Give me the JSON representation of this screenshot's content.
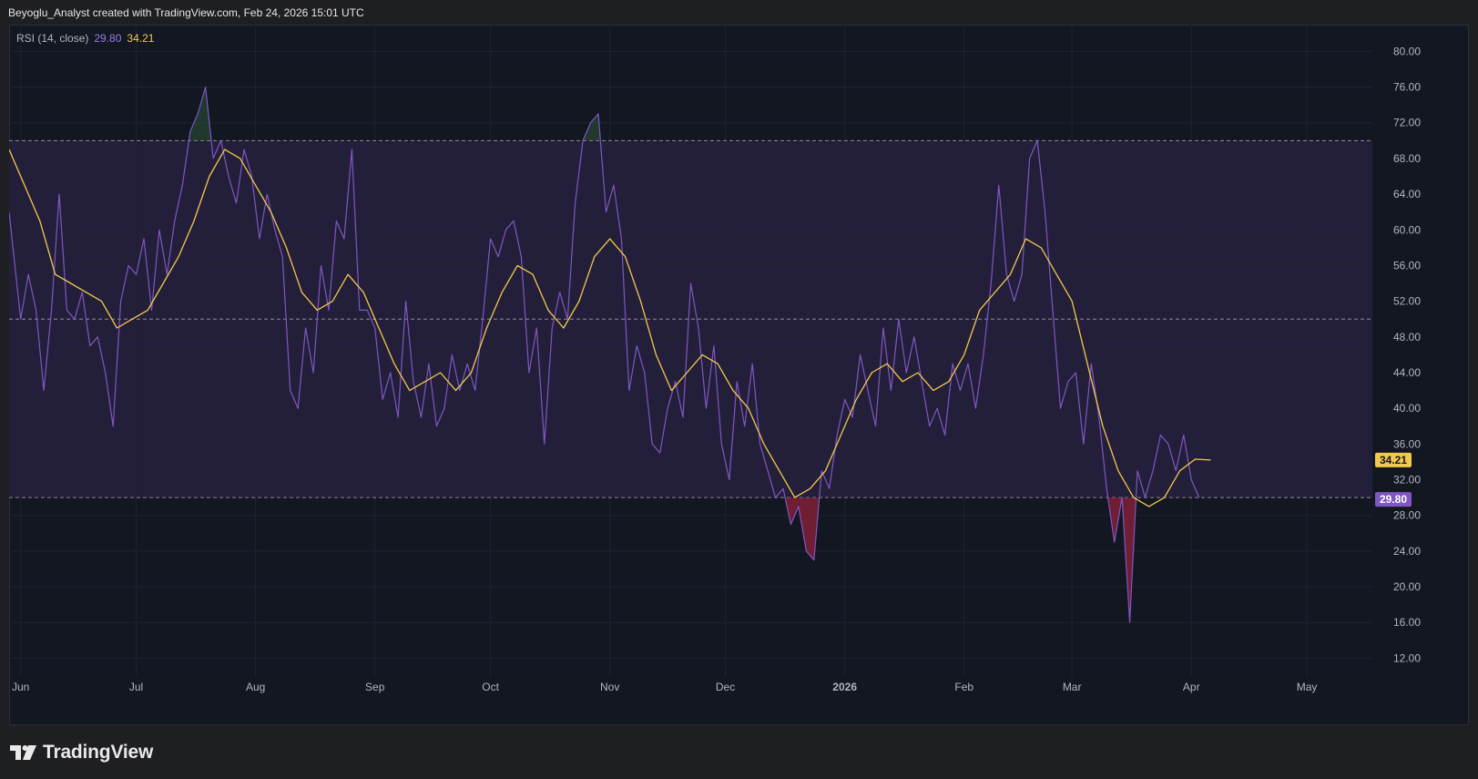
{
  "header": {
    "attribution": "Beyoglu_Analyst created with TradingView.com, Feb 24, 2026 15:01 UTC"
  },
  "legend": {
    "indicator": "RSI (14, close)",
    "rsi_value": "29.80",
    "ma_value": "34.21"
  },
  "footer": {
    "brand": "TradingView"
  },
  "colors": {
    "background": "#131722",
    "rsi_line": "#7e57c2",
    "ma_line": "#f2c94c",
    "band_fill": "#231f3a",
    "grid": "#1f2330",
    "oversold_fill": "#7a1f35"
  },
  "chart_data": {
    "type": "line",
    "indicator": "RSI (14, close)",
    "y_axis": {
      "ticks": [
        80,
        76,
        72,
        68,
        64,
        60,
        56,
        52,
        48,
        44,
        40,
        36,
        32,
        28,
        24,
        20,
        16,
        12
      ],
      "tick_labels": [
        "80.00",
        "76.00",
        "72.00",
        "68.00",
        "64.00",
        "60.00",
        "56.00",
        "52.00",
        "48.00",
        "44.00",
        "40.00",
        "36.00",
        "32.00",
        "28.00",
        "24.00",
        "20.00",
        "16.00",
        "12.00"
      ],
      "range": [
        10,
        83
      ]
    },
    "x_axis": {
      "tick_labels": [
        "Jun",
        "Jul",
        "Aug",
        "Sep",
        "Oct",
        "Nov",
        "Dec",
        "2026",
        "Feb",
        "Mar",
        "Apr",
        "May"
      ],
      "tick_dates": [
        "2025-06-01",
        "2025-07-01",
        "2025-08-01",
        "2025-09-01",
        "2025-10-01",
        "2025-11-01",
        "2025-12-01",
        "2026-01-01",
        "2026-02-01",
        "2026-03-01",
        "2026-04-01",
        "2026-05-01"
      ],
      "range": [
        "2025-05-29",
        "2026-05-18"
      ]
    },
    "bands": {
      "upper": 70,
      "middle": 50,
      "lower": 30
    },
    "last_values": {
      "rsi": "29.80",
      "ma": "34.21"
    },
    "series": [
      {
        "key": "rsi",
        "points": [
          [
            "2025-05-29",
            62
          ],
          [
            "2025-06-01",
            50
          ],
          [
            "2025-06-03",
            55
          ],
          [
            "2025-06-05",
            51
          ],
          [
            "2025-06-07",
            42
          ],
          [
            "2025-06-09",
            51
          ],
          [
            "2025-06-11",
            64
          ],
          [
            "2025-06-13",
            51
          ],
          [
            "2025-06-15",
            50
          ],
          [
            "2025-06-17",
            53
          ],
          [
            "2025-06-19",
            47
          ],
          [
            "2025-06-21",
            48
          ],
          [
            "2025-06-23",
            44
          ],
          [
            "2025-06-25",
            38
          ],
          [
            "2025-06-27",
            52
          ],
          [
            "2025-06-29",
            56
          ],
          [
            "2025-07-01",
            55
          ],
          [
            "2025-07-03",
            59
          ],
          [
            "2025-07-05",
            51
          ],
          [
            "2025-07-07",
            60
          ],
          [
            "2025-07-09",
            55
          ],
          [
            "2025-07-11",
            61
          ],
          [
            "2025-07-13",
            65
          ],
          [
            "2025-07-15",
            71
          ],
          [
            "2025-07-17",
            73
          ],
          [
            "2025-07-19",
            76
          ],
          [
            "2025-07-21",
            68
          ],
          [
            "2025-07-23",
            70
          ],
          [
            "2025-07-25",
            66
          ],
          [
            "2025-07-27",
            63
          ],
          [
            "2025-07-29",
            69
          ],
          [
            "2025-07-31",
            66
          ],
          [
            "2025-08-02",
            59
          ],
          [
            "2025-08-04",
            64
          ],
          [
            "2025-08-06",
            60
          ],
          [
            "2025-08-08",
            57
          ],
          [
            "2025-08-10",
            42
          ],
          [
            "2025-08-12",
            40
          ],
          [
            "2025-08-14",
            49
          ],
          [
            "2025-08-16",
            44
          ],
          [
            "2025-08-18",
            56
          ],
          [
            "2025-08-20",
            51
          ],
          [
            "2025-08-22",
            61
          ],
          [
            "2025-08-24",
            59
          ],
          [
            "2025-08-26",
            69
          ],
          [
            "2025-08-28",
            51
          ],
          [
            "2025-08-30",
            51
          ],
          [
            "2025-09-01",
            49
          ],
          [
            "2025-09-03",
            41
          ],
          [
            "2025-09-05",
            44
          ],
          [
            "2025-09-07",
            39
          ],
          [
            "2025-09-09",
            52
          ],
          [
            "2025-09-11",
            43
          ],
          [
            "2025-09-13",
            39
          ],
          [
            "2025-09-15",
            45
          ],
          [
            "2025-09-17",
            38
          ],
          [
            "2025-09-19",
            40
          ],
          [
            "2025-09-21",
            46
          ],
          [
            "2025-09-23",
            42
          ],
          [
            "2025-09-25",
            45
          ],
          [
            "2025-09-27",
            42
          ],
          [
            "2025-09-29",
            50
          ],
          [
            "2025-10-01",
            59
          ],
          [
            "2025-10-03",
            57
          ],
          [
            "2025-10-05",
            60
          ],
          [
            "2025-10-07",
            61
          ],
          [
            "2025-10-09",
            57
          ],
          [
            "2025-10-11",
            44
          ],
          [
            "2025-10-13",
            49
          ],
          [
            "2025-10-15",
            36
          ],
          [
            "2025-10-17",
            49
          ],
          [
            "2025-10-19",
            53
          ],
          [
            "2025-10-21",
            50
          ],
          [
            "2025-10-23",
            63
          ],
          [
            "2025-10-25",
            70
          ],
          [
            "2025-10-27",
            72
          ],
          [
            "2025-10-29",
            73
          ],
          [
            "2025-10-31",
            62
          ],
          [
            "2025-11-02",
            65
          ],
          [
            "2025-11-04",
            59
          ],
          [
            "2025-11-06",
            42
          ],
          [
            "2025-11-08",
            47
          ],
          [
            "2025-11-10",
            44
          ],
          [
            "2025-11-12",
            36
          ],
          [
            "2025-11-14",
            35
          ],
          [
            "2025-11-16",
            40
          ],
          [
            "2025-11-18",
            43
          ],
          [
            "2025-11-20",
            39
          ],
          [
            "2025-11-22",
            54
          ],
          [
            "2025-11-24",
            49
          ],
          [
            "2025-11-26",
            40
          ],
          [
            "2025-11-28",
            47
          ],
          [
            "2025-11-30",
            36
          ],
          [
            "2025-12-02",
            32
          ],
          [
            "2025-12-04",
            43
          ],
          [
            "2025-12-06",
            38
          ],
          [
            "2025-12-08",
            45
          ],
          [
            "2025-12-10",
            36
          ],
          [
            "2025-12-12",
            33
          ],
          [
            "2025-12-14",
            30
          ],
          [
            "2025-12-16",
            31
          ],
          [
            "2025-12-18",
            27
          ],
          [
            "2025-12-20",
            29
          ],
          [
            "2025-12-22",
            24
          ],
          [
            "2025-12-24",
            23
          ],
          [
            "2025-12-26",
            33
          ],
          [
            "2025-12-28",
            31
          ],
          [
            "2025-12-30",
            37
          ],
          [
            "2026-01-01",
            41
          ],
          [
            "2026-01-03",
            39
          ],
          [
            "2026-01-05",
            46
          ],
          [
            "2026-01-07",
            42
          ],
          [
            "2026-01-09",
            38
          ],
          [
            "2026-01-11",
            49
          ],
          [
            "2026-01-13",
            42
          ],
          [
            "2026-01-15",
            50
          ],
          [
            "2026-01-17",
            44
          ],
          [
            "2026-01-19",
            48
          ],
          [
            "2026-01-21",
            43
          ],
          [
            "2026-01-23",
            38
          ],
          [
            "2026-01-25",
            40
          ],
          [
            "2026-01-27",
            37
          ],
          [
            "2026-01-29",
            45
          ],
          [
            "2026-01-31",
            42
          ],
          [
            "2026-02-02",
            45
          ],
          [
            "2026-02-04",
            40
          ],
          [
            "2026-02-06",
            46
          ],
          [
            "2026-02-08",
            54
          ],
          [
            "2026-02-10",
            65
          ],
          [
            "2026-02-12",
            55
          ],
          [
            "2026-02-14",
            52
          ],
          [
            "2026-02-16",
            55
          ],
          [
            "2026-02-18",
            68
          ],
          [
            "2026-02-20",
            70
          ],
          [
            "2026-02-22",
            62
          ],
          [
            "2026-02-24",
            51
          ],
          [
            "2026-02-26",
            40
          ],
          [
            "2026-02-28",
            43
          ],
          [
            "2026-03-02",
            44
          ],
          [
            "2026-03-04",
            36
          ],
          [
            "2026-03-06",
            45
          ],
          [
            "2026-03-08",
            39
          ],
          [
            "2026-03-10",
            31
          ],
          [
            "2026-03-12",
            25
          ],
          [
            "2026-03-14",
            30
          ],
          [
            "2026-03-16",
            16
          ],
          [
            "2026-03-18",
            33
          ],
          [
            "2026-03-20",
            30
          ],
          [
            "2026-03-22",
            33
          ],
          [
            "2026-03-24",
            37
          ],
          [
            "2026-03-26",
            36
          ],
          [
            "2026-03-28",
            33
          ],
          [
            "2026-03-30",
            37
          ],
          [
            "2026-04-01",
            32
          ],
          [
            "2026-04-03",
            30
          ]
        ]
      },
      {
        "key": "ma",
        "points": [
          [
            "2025-05-29",
            69
          ],
          [
            "2025-06-02",
            65
          ],
          [
            "2025-06-06",
            61
          ],
          [
            "2025-06-10",
            55
          ],
          [
            "2025-06-14",
            54
          ],
          [
            "2025-06-18",
            53
          ],
          [
            "2025-06-22",
            52
          ],
          [
            "2025-06-26",
            49
          ],
          [
            "2025-06-30",
            50
          ],
          [
            "2025-07-04",
            51
          ],
          [
            "2025-07-08",
            54
          ],
          [
            "2025-07-12",
            57
          ],
          [
            "2025-07-16",
            61
          ],
          [
            "2025-07-20",
            66
          ],
          [
            "2025-07-24",
            69
          ],
          [
            "2025-07-28",
            68
          ],
          [
            "2025-08-01",
            65
          ],
          [
            "2025-08-05",
            62
          ],
          [
            "2025-08-09",
            58
          ],
          [
            "2025-08-13",
            53
          ],
          [
            "2025-08-17",
            51
          ],
          [
            "2025-08-21",
            52
          ],
          [
            "2025-08-25",
            55
          ],
          [
            "2025-08-29",
            53
          ],
          [
            "2025-09-02",
            49
          ],
          [
            "2025-09-06",
            45
          ],
          [
            "2025-09-10",
            42
          ],
          [
            "2025-09-14",
            43
          ],
          [
            "2025-09-18",
            44
          ],
          [
            "2025-09-22",
            42
          ],
          [
            "2025-09-26",
            44
          ],
          [
            "2025-09-30",
            49
          ],
          [
            "2025-10-04",
            53
          ],
          [
            "2025-10-08",
            56
          ],
          [
            "2025-10-12",
            55
          ],
          [
            "2025-10-16",
            51
          ],
          [
            "2025-10-20",
            49
          ],
          [
            "2025-10-24",
            52
          ],
          [
            "2025-10-28",
            57
          ],
          [
            "2025-11-01",
            59
          ],
          [
            "2025-11-05",
            57
          ],
          [
            "2025-11-09",
            52
          ],
          [
            "2025-11-13",
            46
          ],
          [
            "2025-11-17",
            42
          ],
          [
            "2025-11-21",
            44
          ],
          [
            "2025-11-25",
            46
          ],
          [
            "2025-11-29",
            45
          ],
          [
            "2025-12-03",
            42
          ],
          [
            "2025-12-07",
            40
          ],
          [
            "2025-12-11",
            36
          ],
          [
            "2025-12-15",
            33
          ],
          [
            "2025-12-19",
            30
          ],
          [
            "2025-12-23",
            31
          ],
          [
            "2025-12-27",
            33
          ],
          [
            "2025-12-31",
            37
          ],
          [
            "2026-01-04",
            41
          ],
          [
            "2026-01-08",
            44
          ],
          [
            "2026-01-12",
            45
          ],
          [
            "2026-01-16",
            43
          ],
          [
            "2026-01-20",
            44
          ],
          [
            "2026-01-24",
            42
          ],
          [
            "2026-01-28",
            43
          ],
          [
            "2026-02-01",
            46
          ],
          [
            "2026-02-05",
            51
          ],
          [
            "2026-02-09",
            53
          ],
          [
            "2026-02-13",
            55
          ],
          [
            "2026-02-17",
            59
          ],
          [
            "2026-02-21",
            58
          ],
          [
            "2026-02-25",
            55
          ],
          [
            "2026-03-01",
            52
          ],
          [
            "2026-03-05",
            45
          ],
          [
            "2026-03-09",
            38
          ],
          [
            "2026-03-13",
            33
          ],
          [
            "2026-03-17",
            30
          ],
          [
            "2026-03-21",
            29
          ],
          [
            "2026-03-25",
            30
          ],
          [
            "2026-03-29",
            33
          ],
          [
            "2026-04-02",
            34.3
          ],
          [
            "2026-04-06",
            34.21
          ]
        ]
      }
    ]
  }
}
